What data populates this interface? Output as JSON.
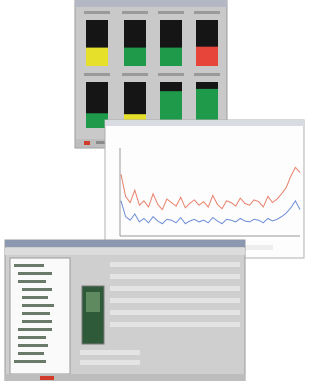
{
  "gauges": [
    {
      "color": "#e6e02a",
      "level": 40
    },
    {
      "color": "#1f9a4a",
      "level": 40
    },
    {
      "color": "#1f9a4a",
      "level": 40
    },
    {
      "color": "#e8453a",
      "level": 42
    },
    {
      "color": "#1f9a4a",
      "level": 32
    },
    {
      "color": "#e6e02a",
      "level": 30
    },
    {
      "color": "#1f9a4a",
      "level": 80
    },
    {
      "color": "#1f9a4a",
      "level": 85
    }
  ],
  "trend": {
    "ylim": [
      0,
      100
    ],
    "series": [
      {
        "color": "#e8806a",
        "values": [
          70,
          45,
          38,
          52,
          35,
          40,
          33,
          48,
          36,
          30,
          42,
          38,
          34,
          44,
          32,
          37,
          41,
          35,
          39,
          33,
          46,
          36,
          31,
          40,
          38,
          34,
          43,
          37,
          35,
          41,
          39,
          33,
          45,
          38,
          42,
          48,
          55,
          68,
          78,
          72
        ]
      },
      {
        "color": "#6c8cd8",
        "values": [
          40,
          22,
          18,
          25,
          16,
          20,
          15,
          22,
          17,
          14,
          19,
          18,
          15,
          21,
          14,
          17,
          19,
          16,
          18,
          15,
          21,
          17,
          14,
          19,
          18,
          16,
          20,
          17,
          16,
          19,
          18,
          15,
          20,
          17,
          19,
          22,
          26,
          32,
          40,
          30
        ]
      }
    ]
  }
}
